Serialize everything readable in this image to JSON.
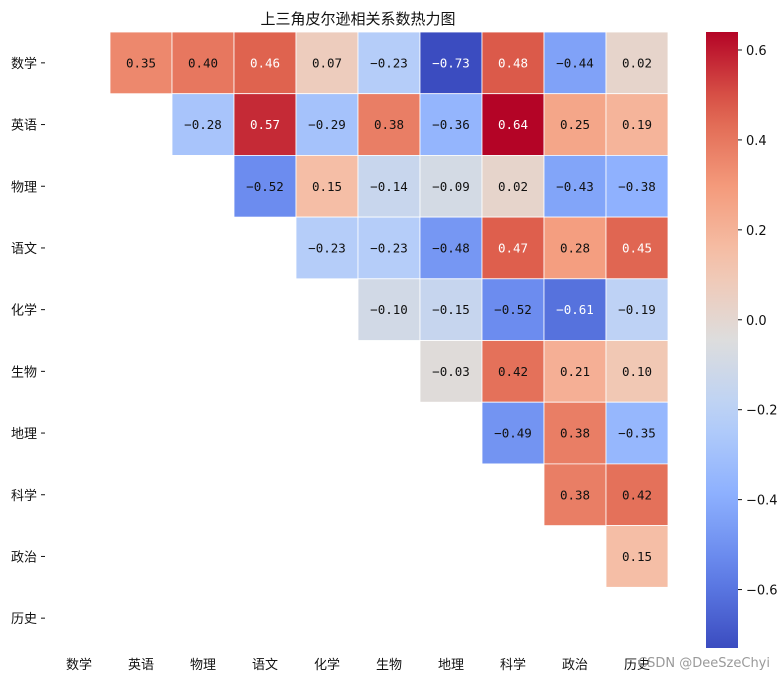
{
  "chart_data": {
    "type": "heatmap",
    "title": "上三角皮尔逊相关系数热力图",
    "variables": [
      "数学",
      "英语",
      "物理",
      "语文",
      "化学",
      "生物",
      "地理",
      "科学",
      "政治",
      "历史"
    ],
    "mask": "lower-triangle-and-diagonal",
    "matrix": [
      [
        null,
        0.35,
        0.4,
        0.46,
        0.07,
        -0.23,
        -0.73,
        0.48,
        -0.44,
        0.02
      ],
      [
        null,
        null,
        -0.28,
        0.57,
        -0.29,
        0.38,
        -0.36,
        0.64,
        0.25,
        0.19
      ],
      [
        null,
        null,
        null,
        -0.52,
        0.15,
        -0.14,
        -0.09,
        0.02,
        -0.43,
        -0.38
      ],
      [
        null,
        null,
        null,
        null,
        -0.23,
        -0.23,
        -0.48,
        0.47,
        0.28,
        0.45
      ],
      [
        null,
        null,
        null,
        null,
        null,
        -0.1,
        -0.15,
        -0.52,
        -0.61,
        -0.19
      ],
      [
        null,
        null,
        null,
        null,
        null,
        null,
        -0.03,
        0.42,
        0.21,
        0.1
      ],
      [
        null,
        null,
        null,
        null,
        null,
        null,
        null,
        -0.49,
        0.38,
        -0.35
      ],
      [
        null,
        null,
        null,
        null,
        null,
        null,
        null,
        null,
        0.38,
        0.42
      ],
      [
        null,
        null,
        null,
        null,
        null,
        null,
        null,
        null,
        null,
        0.15
      ],
      [
        null,
        null,
        null,
        null,
        null,
        null,
        null,
        null,
        null,
        null
      ]
    ],
    "colormap": "coolwarm",
    "vmin": -0.73,
    "vmax": 0.64,
    "colorbar_ticks": [
      "0.6",
      "0.4",
      "0.2",
      "0.0",
      "−0.2",
      "−0.4",
      "−0.6"
    ],
    "colorbar_tick_values": [
      0.6,
      0.4,
      0.2,
      0.0,
      -0.2,
      -0.4,
      -0.6
    ]
  },
  "watermark": "CSDN @DeeSzeChyi"
}
